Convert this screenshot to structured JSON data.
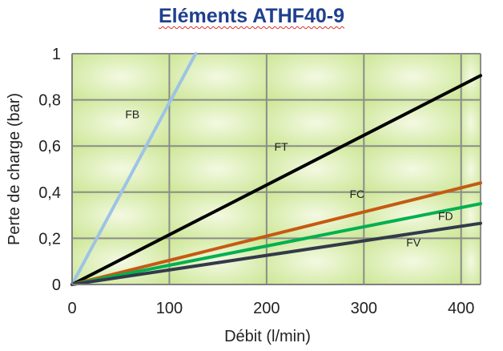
{
  "chart_data": {
    "type": "line",
    "title": "Eléments ATHF40-9",
    "xlabel": "Débit (l/min)",
    "ylabel": "Perte de charge (bar)",
    "xlim": [
      0,
      420
    ],
    "ylim": [
      0,
      1
    ],
    "xticks": [
      0,
      100,
      200,
      300,
      400
    ],
    "xtick_labels": [
      "0",
      "100",
      "200",
      "300",
      "400"
    ],
    "yticks": [
      0,
      0.2,
      0.4,
      0.6,
      0.8,
      1.0
    ],
    "ytick_labels": [
      "0",
      "0,2",
      "0,4",
      "0,6",
      "0,8",
      "1"
    ],
    "grid": true,
    "series": [
      {
        "name": "FB",
        "color": "#9dc3e6",
        "x": [
          0,
          127
        ],
        "y": [
          0,
          1.0
        ],
        "label_at": [
          62,
          0.72
        ]
      },
      {
        "name": "FT",
        "color": "#000000",
        "x": [
          0,
          420
        ],
        "y": [
          0,
          0.905
        ],
        "label_at": [
          215,
          0.58
        ]
      },
      {
        "name": "FC",
        "color": "#c55a11",
        "x": [
          0,
          420
        ],
        "y": [
          0,
          0.44
        ],
        "label_at": [
          293,
          0.375
        ]
      },
      {
        "name": "FD",
        "color": "#00b050",
        "x": [
          0,
          420
        ],
        "y": [
          0,
          0.35
        ],
        "label_at": [
          384,
          0.28
        ]
      },
      {
        "name": "FV",
        "color": "#333a4a",
        "x": [
          0,
          420
        ],
        "y": [
          0,
          0.265
        ],
        "label_at": [
          351,
          0.165
        ]
      }
    ]
  }
}
